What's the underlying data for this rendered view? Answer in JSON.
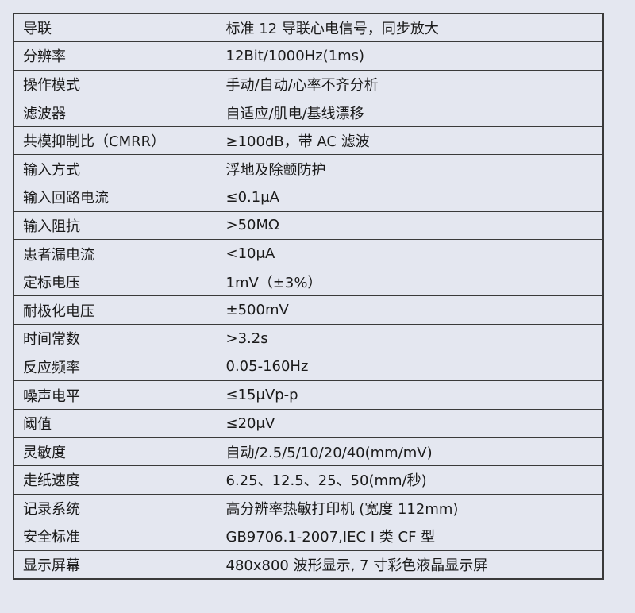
{
  "rows": [
    {
      "label": "导联",
      "value": "标准 12 导联心电信号，同步放大"
    },
    {
      "label": "分辨率",
      "value": "12Bit/1000Hz(1ms)"
    },
    {
      "label": "操作模式",
      "value": "手动/自动/心率不齐分析"
    },
    {
      "label": "滤波器",
      "value": "自适应/肌电/基线漂移"
    },
    {
      "label": "共模抑制比（CMRR）",
      "value": "≥100dB，带 AC 滤波"
    },
    {
      "label": "输入方式",
      "value": "浮地及除颤防护"
    },
    {
      "label": "输入回路电流",
      "value": "≤0.1μA"
    },
    {
      "label": "输入阻抗",
      "value": ">50MΩ"
    },
    {
      "label": "患者漏电流",
      "value": "<10μA"
    },
    {
      "label": "定标电压",
      "value": "1mV（±3%）"
    },
    {
      "label": "耐极化电压",
      "value": "±500mV"
    },
    {
      "label": "时间常数",
      "value": ">3.2s"
    },
    {
      "label": "反应频率",
      "value": "0.05-160Hz"
    },
    {
      "label": "噪声电平",
      "value": "≤15μVp-p"
    },
    {
      "label": "阈值",
      "value": "≤20μV"
    },
    {
      "label": "灵敏度",
      "value": "自动/2.5/5/10/20/40(mm/mV)"
    },
    {
      "label": "走纸速度",
      "value": "6.25、12.5、25、50(mm/秒)"
    },
    {
      "label": "记录系统",
      "value": "高分辨率热敏打印机 (宽度 112mm)"
    },
    {
      "label": "安全标准",
      "value": "GB9706.1-2007,IEC I 类 CF 型"
    },
    {
      "label": "显示屏幕",
      "value": "480x800 波形显示, 7 寸彩色液晶显示屏"
    }
  ]
}
